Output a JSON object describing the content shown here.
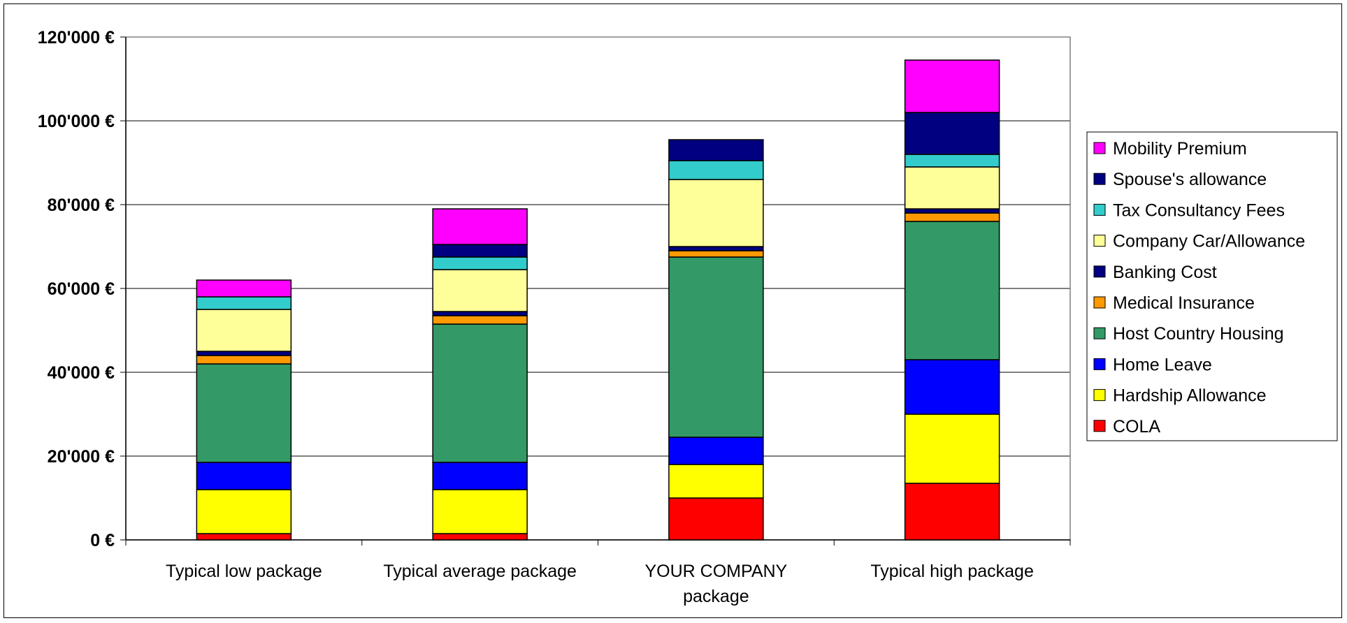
{
  "chart_data": {
    "type": "bar",
    "stacked": true,
    "categories": [
      [
        "Typical low package"
      ],
      [
        "Typical average package"
      ],
      [
        "YOUR COMPANY",
        "package"
      ],
      [
        "Typical high package"
      ]
    ],
    "ylim": [
      0,
      120000
    ],
    "yticks": [
      0,
      20000,
      40000,
      60000,
      80000,
      100000,
      120000
    ],
    "ytick_labels": [
      "0 €",
      "20'000 €",
      "40'000 €",
      "60'000 €",
      "80'000 €",
      "100'000 €",
      "120'000 €"
    ],
    "grid": true,
    "legend_position": "right",
    "series": [
      {
        "name": "COLA",
        "color": "#FF0000",
        "values": [
          1500,
          1500,
          10000,
          13500
        ]
      },
      {
        "name": "Hardship Allowance",
        "color": "#FFFF00",
        "values": [
          10500,
          10500,
          8000,
          16500
        ]
      },
      {
        "name": "Home Leave",
        "color": "#0000FF",
        "values": [
          6500,
          6500,
          6500,
          13000
        ]
      },
      {
        "name": "Host Country Housing",
        "color": "#339966",
        "values": [
          23500,
          33000,
          43000,
          33000
        ]
      },
      {
        "name": "Medical Insurance",
        "color": "#FF9900",
        "values": [
          2000,
          2000,
          1500,
          2000
        ]
      },
      {
        "name": "Banking Cost",
        "color": "#000080",
        "values": [
          1000,
          1000,
          1000,
          1000
        ]
      },
      {
        "name": "Company Car/Allowance",
        "color": "#FFFF99",
        "values": [
          10000,
          10000,
          16000,
          10000
        ]
      },
      {
        "name": "Tax Consultancy Fees",
        "color": "#33CCCC",
        "values": [
          3000,
          3000,
          4500,
          3000
        ]
      },
      {
        "name": "Spouse's allowance",
        "color": "#000080",
        "values": [
          0,
          3000,
          5000,
          10000
        ]
      },
      {
        "name": "Mobility Premium",
        "color": "#FF00FF",
        "values": [
          4000,
          8500,
          0,
          12500
        ]
      }
    ]
  }
}
